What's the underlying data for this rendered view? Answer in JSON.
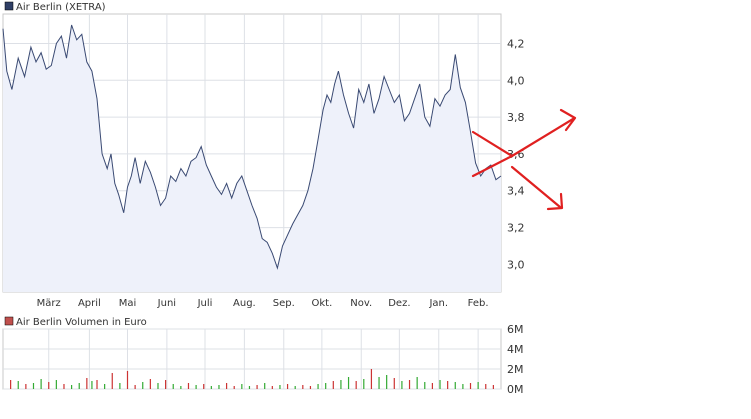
{
  "price_chart": {
    "legend_label": "Air Berlin (XETRA)",
    "legend_color": "#2f3f66",
    "line_color": "#3a4a73",
    "fill_color": "#eef1fa"
  },
  "volume_chart": {
    "legend_label": "Air Berlin Volumen in Euro",
    "legend_color": "#c0504d",
    "up_color": "#33aa33",
    "down_color": "#cc3333"
  },
  "annotation": {
    "arrow_color": "#e02020"
  },
  "chart_data": [
    {
      "type": "line",
      "title": "Air Berlin (XETRA)",
      "xlabel": "",
      "ylabel": "",
      "ylim": [
        2.85,
        4.36
      ],
      "yticks": [
        "3,0",
        "3,2",
        "3,4",
        "3,6",
        "3,8",
        "4,0",
        "4,2"
      ],
      "ytick_values": [
        3.0,
        3.2,
        3.4,
        3.6,
        3.8,
        4.0,
        4.2
      ],
      "xticks": [
        "März",
        "April",
        "Mai",
        "Juni",
        "Juli",
        "Aug.",
        "Sep.",
        "Okt.",
        "Nov.",
        "Dez.",
        "Jan.",
        "Feb."
      ],
      "xtick_days": [
        36,
        68,
        98,
        129,
        159,
        190,
        221,
        251,
        282,
        312,
        343,
        374
      ],
      "xlim_days": [
        0,
        392
      ],
      "grid": true,
      "legend": "top-left",
      "x_days": [
        0,
        3,
        7,
        12,
        17,
        22,
        26,
        30,
        34,
        38,
        42,
        46,
        50,
        54,
        58,
        62,
        66,
        70,
        74,
        78,
        82,
        85,
        88,
        91,
        95,
        98,
        101,
        104,
        108,
        112,
        116,
        120,
        124,
        128,
        132,
        136,
        140,
        144,
        148,
        152,
        156,
        160,
        164,
        168,
        172,
        176,
        180,
        184,
        188,
        192,
        196,
        200,
        204,
        208,
        212,
        216,
        220,
        224,
        228,
        232,
        236,
        240,
        244,
        248,
        252,
        255,
        258,
        261,
        264,
        268,
        272,
        276,
        280,
        284,
        288,
        292,
        296,
        300,
        304,
        308,
        312,
        316,
        320,
        324,
        328,
        332,
        336,
        340,
        344,
        348,
        352,
        356,
        360,
        364,
        368,
        372,
        376,
        380,
        384,
        388,
        392
      ],
      "y": [
        4.28,
        4.05,
        3.95,
        4.12,
        4.02,
        4.18,
        4.1,
        4.15,
        4.06,
        4.08,
        4.2,
        4.24,
        4.12,
        4.3,
        4.22,
        4.25,
        4.1,
        4.05,
        3.9,
        3.6,
        3.52,
        3.6,
        3.44,
        3.38,
        3.28,
        3.42,
        3.48,
        3.58,
        3.44,
        3.56,
        3.5,
        3.42,
        3.32,
        3.36,
        3.48,
        3.45,
        3.52,
        3.48,
        3.56,
        3.58,
        3.64,
        3.54,
        3.48,
        3.42,
        3.38,
        3.44,
        3.36,
        3.44,
        3.48,
        3.4,
        3.32,
        3.25,
        3.14,
        3.12,
        3.06,
        2.98,
        3.1,
        3.16,
        3.22,
        3.27,
        3.32,
        3.4,
        3.52,
        3.68,
        3.84,
        3.92,
        3.88,
        3.98,
        4.05,
        3.92,
        3.82,
        3.74,
        3.95,
        3.88,
        3.98,
        3.82,
        3.9,
        4.02,
        3.95,
        3.88,
        3.92,
        3.78,
        3.82,
        3.9,
        3.98,
        3.8,
        3.75,
        3.9,
        3.86,
        3.92,
        3.95,
        4.14,
        3.96,
        3.88,
        3.72,
        3.55,
        3.48,
        3.52,
        3.54,
        3.46,
        3.48
      ]
    },
    {
      "type": "bar",
      "title": "Air Berlin Volumen in Euro",
      "xlabel": "",
      "ylabel": "",
      "ylim": [
        0,
        6
      ],
      "yticks": [
        "0M",
        "2M",
        "4M",
        "6M"
      ],
      "ytick_values": [
        0,
        2,
        4,
        6
      ],
      "unit": "Mio. Euro",
      "bar_days": [
        6,
        12,
        18,
        24,
        30,
        36,
        42,
        48,
        54,
        60,
        66,
        70,
        74,
        80,
        86,
        92,
        98,
        104,
        110,
        116,
        122,
        128,
        134,
        140,
        146,
        152,
        158,
        164,
        170,
        176,
        182,
        188,
        194,
        200,
        206,
        212,
        218,
        224,
        230,
        236,
        242,
        248,
        254,
        260,
        266,
        272,
        278,
        284,
        290,
        296,
        302,
        308,
        314,
        320,
        326,
        332,
        338,
        344,
        350,
        356,
        362,
        368,
        374,
        380,
        386
      ],
      "values": [
        0.9,
        0.8,
        0.5,
        0.6,
        1.0,
        0.7,
        0.9,
        0.5,
        0.4,
        0.6,
        1.1,
        0.8,
        0.9,
        0.5,
        1.6,
        0.6,
        1.8,
        0.4,
        0.7,
        1.0,
        0.6,
        0.9,
        0.5,
        0.3,
        0.6,
        0.4,
        0.5,
        0.3,
        0.4,
        0.6,
        0.3,
        0.5,
        0.3,
        0.4,
        0.6,
        0.3,
        0.4,
        0.5,
        0.3,
        0.4,
        0.3,
        0.5,
        0.6,
        0.8,
        0.9,
        1.2,
        0.8,
        1.0,
        2.0,
        1.2,
        1.4,
        1.1,
        0.8,
        0.9,
        1.2,
        0.7,
        0.6,
        0.9,
        0.8,
        0.7,
        0.5,
        0.6,
        0.7,
        0.5,
        0.4
      ],
      "direction": [
        "d",
        "u",
        "d",
        "u",
        "u",
        "d",
        "u",
        "d",
        "u",
        "u",
        "d",
        "u",
        "d",
        "u",
        "d",
        "u",
        "d",
        "d",
        "u",
        "d",
        "u",
        "d",
        "u",
        "u",
        "d",
        "u",
        "d",
        "u",
        "u",
        "d",
        "d",
        "u",
        "u",
        "d",
        "u",
        "d",
        "u",
        "d",
        "u",
        "d",
        "d",
        "u",
        "u",
        "d",
        "u",
        "u",
        "d",
        "u",
        "d",
        "u",
        "u",
        "d",
        "u",
        "d",
        "u",
        "u",
        "d",
        "u",
        "d",
        "u",
        "u",
        "d",
        "u",
        "d",
        "d"
      ],
      "legend": "top-left"
    }
  ]
}
